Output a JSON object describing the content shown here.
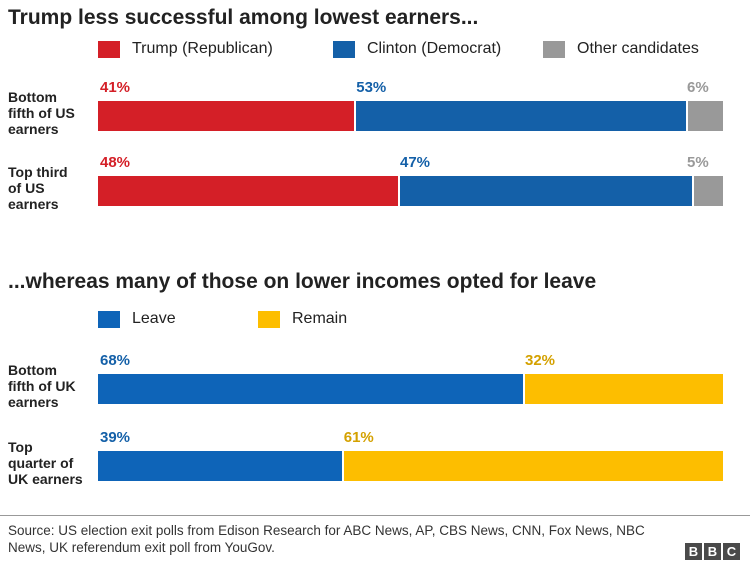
{
  "chart_data": [
    {
      "type": "bar",
      "stacked": true,
      "orientation": "horizontal",
      "title": "Trump less successful among lowest earners...",
      "categories": [
        "Bottom fifth of US earners",
        "Top third of US earners"
      ],
      "series": [
        {
          "name": "Trump (Republican)",
          "color": "#d41f27",
          "values": [
            41,
            48
          ]
        },
        {
          "name": "Clinton (Democrat)",
          "color": "#1460a8",
          "values": [
            53,
            47
          ]
        },
        {
          "name": "Other candidates",
          "color": "#999999",
          "values": [
            6,
            5
          ]
        }
      ],
      "value_labels": [
        [
          "41%",
          "53%",
          "6%"
        ],
        [
          "48%",
          "47%",
          "5%"
        ]
      ],
      "legend_position": "top",
      "grid": false
    },
    {
      "type": "bar",
      "stacked": true,
      "orientation": "horizontal",
      "title": "...whereas many of those on lower incomes opted for leave",
      "categories": [
        "Bottom fifth of UK earners",
        "Top quarter of UK earners"
      ],
      "series": [
        {
          "name": "Leave",
          "color": "#0e64b8",
          "values": [
            68,
            39
          ]
        },
        {
          "name": "Remain",
          "color": "#fdbe00",
          "values": [
            32,
            61
          ]
        }
      ],
      "value_labels": [
        [
          "68%",
          "32%"
        ],
        [
          "39%",
          "61%"
        ]
      ],
      "legend_position": "top",
      "grid": false
    }
  ],
  "row_labels": [
    [
      "Bottom",
      "fifth of US",
      "earners"
    ],
    [
      "Top third",
      "of US",
      "earners"
    ],
    [
      "Bottom",
      "fifth of UK",
      "earners"
    ],
    [
      "Top",
      "quarter of",
      "UK earners"
    ]
  ],
  "label_colors": [
    "#d41f27",
    "#1460a8",
    "#999999",
    "#1460a8",
    "#d4a100"
  ],
  "source": "Source: US election exit polls from Edison Research for ABC News, AP, CBS News, CNN, Fox News, NBC News, UK referendum exit poll from YouGov.",
  "logo_letters": [
    "B",
    "B",
    "C"
  ]
}
